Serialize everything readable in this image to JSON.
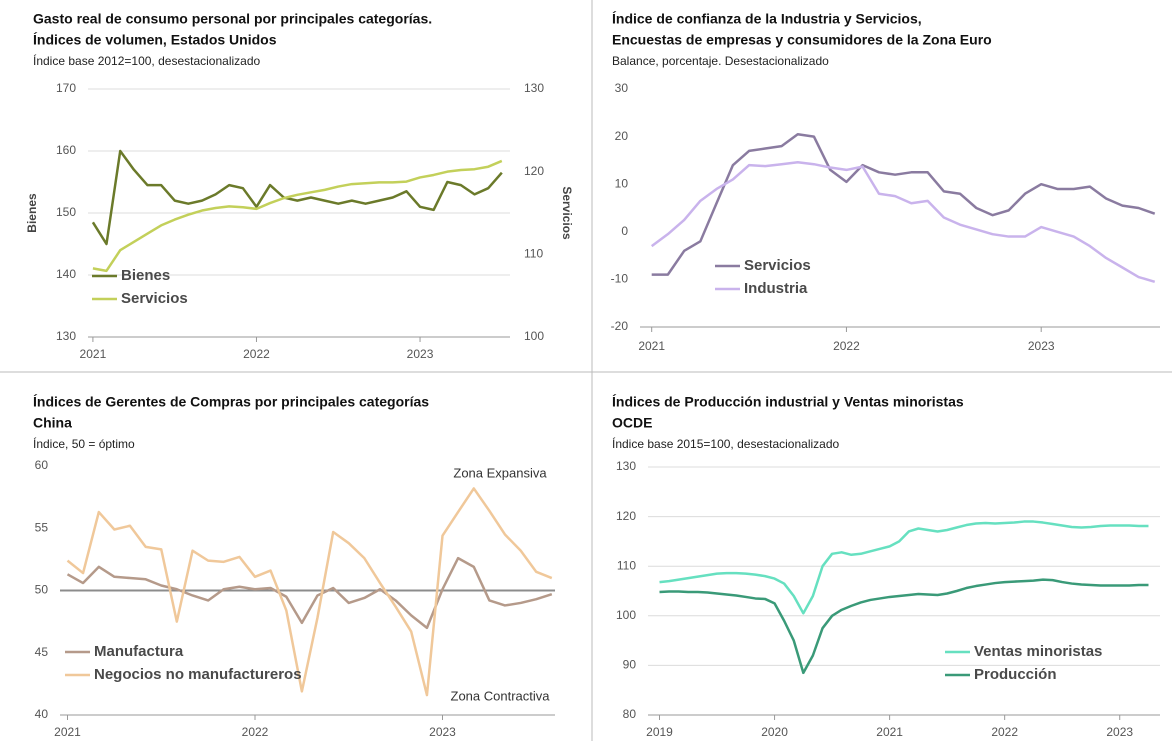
{
  "chart_data": [
    {
      "type": "line",
      "title": [
        "Gasto real de consumo personal por principales categorías.",
        "Índices de volumen, Estados Unidos"
      ],
      "subtitle": "Índice base 2012=100, desestacionalizado",
      "ylabel": "Bienes",
      "y2label": "Servicios",
      "x": [
        2021,
        2021.083,
        2021.167,
        2021.25,
        2021.333,
        2021.417,
        2021.5,
        2021.583,
        2021.667,
        2021.75,
        2021.833,
        2021.917,
        2022,
        2022.083,
        2022.167,
        2022.25,
        2022.333,
        2022.417,
        2022.5,
        2022.583,
        2022.667,
        2022.75,
        2022.833,
        2022.917,
        2023,
        2023.083,
        2023.167,
        2023.25,
        2023.333,
        2023.417,
        2023.5
      ],
      "series": [
        {
          "name": "Bienes",
          "color": "#6b7a2a",
          "values": [
            148.5,
            145,
            160,
            157,
            154.5,
            154.5,
            152,
            151.5,
            152,
            153,
            154.5,
            154,
            151,
            154.5,
            152.5,
            152,
            152.5,
            152,
            151.5,
            152,
            151.5,
            152,
            152.5,
            153.5,
            151,
            150.5,
            155,
            154.5,
            153,
            154,
            156.5
          ]
        },
        {
          "name": "Servicios",
          "color": "#c3d05a",
          "axis": "y2",
          "values": [
            108.3,
            108,
            110.5,
            111.5,
            112.5,
            113.5,
            114.2,
            114.8,
            115.3,
            115.6,
            115.8,
            115.7,
            115.5,
            116.2,
            116.8,
            117.2,
            117.5,
            117.8,
            118.2,
            118.5,
            118.6,
            118.7,
            118.7,
            118.8,
            119.3,
            119.6,
            120,
            120.2,
            120.3,
            120.6,
            121.3
          ]
        }
      ],
      "xlim": [
        2020.97,
        2023.55
      ],
      "xticks": [
        2021,
        2022,
        2023
      ],
      "ylim": [
        130,
        170
      ],
      "yticks": [
        130,
        140,
        150,
        160,
        170
      ],
      "y2lim": [
        100,
        130
      ],
      "y2ticks": [
        100,
        110,
        120,
        130
      ],
      "grid": true,
      "legend": "lower left"
    },
    {
      "type": "line",
      "title": [
        "Índice de confianza de la Industria y Servicios,",
        "Encuestas de empresas y consumidores de la Zona Euro"
      ],
      "subtitle": "Balance, porcentaje. Desestacionalizado",
      "x": [
        2021,
        2021.083,
        2021.167,
        2021.25,
        2021.333,
        2021.417,
        2021.5,
        2021.583,
        2021.667,
        2021.75,
        2021.833,
        2021.917,
        2022,
        2022.083,
        2022.167,
        2022.25,
        2022.333,
        2022.417,
        2022.5,
        2022.583,
        2022.667,
        2022.75,
        2022.833,
        2022.917,
        2023,
        2023.083,
        2023.167,
        2023.25,
        2023.333,
        2023.417,
        2023.5,
        2023.583
      ],
      "series": [
        {
          "name": "Servicios",
          "color": "#8a7ba0",
          "values": [
            -9,
            -9,
            -4,
            -2,
            6,
            14,
            17,
            17.5,
            18,
            20.5,
            20,
            13,
            10.5,
            14,
            12.5,
            12,
            12.5,
            12.5,
            8.5,
            8,
            5,
            3.5,
            4.5,
            8,
            10,
            9,
            9,
            9.5,
            7,
            5.5,
            5,
            3.8
          ]
        },
        {
          "name": "Industria",
          "color": "#c9b3ec",
          "values": [
            -3,
            -0.5,
            2.5,
            6.5,
            9,
            11,
            14,
            13.8,
            14.2,
            14.6,
            14.2,
            13.5,
            13,
            13.7,
            8,
            7.5,
            6,
            6.5,
            3,
            1.5,
            0.5,
            -0.5,
            -1,
            -1,
            1,
            0,
            -1,
            -3,
            -5.5,
            -7.5,
            -9.5,
            -10.5
          ]
        }
      ],
      "xlim": [
        2020.94,
        2023.61
      ],
      "xticks": [
        2021,
        2022,
        2023
      ],
      "ylim": [
        -20,
        30
      ],
      "yticks": [
        -20,
        -10,
        0,
        10,
        20,
        30
      ],
      "grid": false,
      "legend": "lower left"
    },
    {
      "type": "line",
      "title": [
        "Índices de Gerentes de Compras por principales categorías",
        "China"
      ],
      "subtitle": "Índice, 50 = óptimo",
      "annotations": [
        "Zona Expansiva",
        "Zona Contractiva"
      ],
      "hline": 50,
      "x": [
        2021,
        2021.083,
        2021.167,
        2021.25,
        2021.333,
        2021.417,
        2021.5,
        2021.583,
        2021.667,
        2021.75,
        2021.833,
        2021.917,
        2022,
        2022.083,
        2022.167,
        2022.25,
        2022.333,
        2022.417,
        2022.5,
        2022.583,
        2022.667,
        2022.75,
        2022.833,
        2022.917,
        2023,
        2023.083,
        2023.167,
        2023.25,
        2023.333,
        2023.417,
        2023.5,
        2023.583
      ],
      "series": [
        {
          "name": "Manufactura",
          "color": "#b59a8a",
          "values": [
            51.3,
            50.6,
            51.9,
            51.1,
            51,
            50.9,
            50.4,
            50.1,
            49.6,
            49.2,
            50.1,
            50.3,
            50.1,
            50.2,
            49.5,
            47.4,
            49.6,
            50.2,
            49,
            49.4,
            50.1,
            49.2,
            48,
            47,
            50.1,
            52.6,
            51.9,
            49.2,
            48.8,
            49,
            49.3,
            49.7
          ]
        },
        {
          "name": "Negocios no manufactureros",
          "color": "#f0c89a",
          "values": [
            52.4,
            51.4,
            56.3,
            54.9,
            55.2,
            53.5,
            53.3,
            47.5,
            53.2,
            52.4,
            52.3,
            52.7,
            51.1,
            51.6,
            48.4,
            41.9,
            47.8,
            54.7,
            53.8,
            52.6,
            50.6,
            48.7,
            46.7,
            41.6,
            54.4,
            56.3,
            58.2,
            56.4,
            54.5,
            53.2,
            51.5,
            51
          ]
        }
      ],
      "xlim": [
        2020.96,
        2023.6
      ],
      "xticks": [
        2021,
        2022,
        2023
      ],
      "ylim": [
        40,
        60
      ],
      "yticks": [
        40,
        45,
        50,
        55,
        60
      ],
      "grid": false,
      "legend": "lower left"
    },
    {
      "type": "line",
      "title": [
        "Índices de Producción industrial y Ventas minoristas",
        "OCDE"
      ],
      "subtitle": "Índice base 2015=100, desestacionalizado",
      "x": [
        2019,
        2019.083,
        2019.167,
        2019.25,
        2019.333,
        2019.417,
        2019.5,
        2019.583,
        2019.667,
        2019.75,
        2019.833,
        2019.917,
        2020,
        2020.083,
        2020.167,
        2020.25,
        2020.333,
        2020.417,
        2020.5,
        2020.583,
        2020.667,
        2020.75,
        2020.833,
        2020.917,
        2021,
        2021.083,
        2021.167,
        2021.25,
        2021.333,
        2021.417,
        2021.5,
        2021.583,
        2021.667,
        2021.75,
        2021.833,
        2021.917,
        2022,
        2022.083,
        2022.167,
        2022.25,
        2022.333,
        2022.417,
        2022.5,
        2022.583,
        2022.667,
        2022.75,
        2022.833,
        2022.917,
        2023,
        2023.083,
        2023.167,
        2023.25
      ],
      "series": [
        {
          "name": "Ventas minoristas",
          "color": "#66e0c0",
          "values": [
            106.8,
            107,
            107.3,
            107.6,
            107.9,
            108.2,
            108.5,
            108.6,
            108.6,
            108.5,
            108.3,
            108,
            107.5,
            106.5,
            104,
            100.5,
            104,
            110,
            112.5,
            112.8,
            112.3,
            112.5,
            113,
            113.5,
            114,
            115,
            117,
            117.6,
            117.3,
            117,
            117.3,
            117.8,
            118.3,
            118.6,
            118.7,
            118.6,
            118.7,
            118.8,
            119,
            119,
            118.8,
            118.5,
            118.2,
            117.9,
            117.8,
            117.9,
            118.1,
            118.2,
            118.2,
            118.2,
            118.1,
            118.1
          ]
        },
        {
          "name": "Producción",
          "color": "#3a9a78",
          "values": [
            104.8,
            104.9,
            104.9,
            104.8,
            104.8,
            104.7,
            104.5,
            104.3,
            104.1,
            103.8,
            103.5,
            103.4,
            102.5,
            99,
            95,
            88.5,
            92,
            97.5,
            100,
            101.2,
            102,
            102.7,
            103.2,
            103.5,
            103.8,
            104,
            104.2,
            104.4,
            104.3,
            104.2,
            104.5,
            105,
            105.6,
            106,
            106.3,
            106.6,
            106.8,
            106.9,
            107,
            107.1,
            107.3,
            107.2,
            106.8,
            106.5,
            106.3,
            106.2,
            106.1,
            106.1,
            106.1,
            106.1,
            106.2,
            106.2
          ]
        }
      ],
      "xlim": [
        2018.9,
        2023.35
      ],
      "xticks": [
        2019,
        2020,
        2021,
        2022,
        2023
      ],
      "ylim": [
        80,
        130
      ],
      "yticks": [
        80,
        90,
        100,
        110,
        120,
        130
      ],
      "grid": true,
      "legend": "lower right"
    }
  ]
}
